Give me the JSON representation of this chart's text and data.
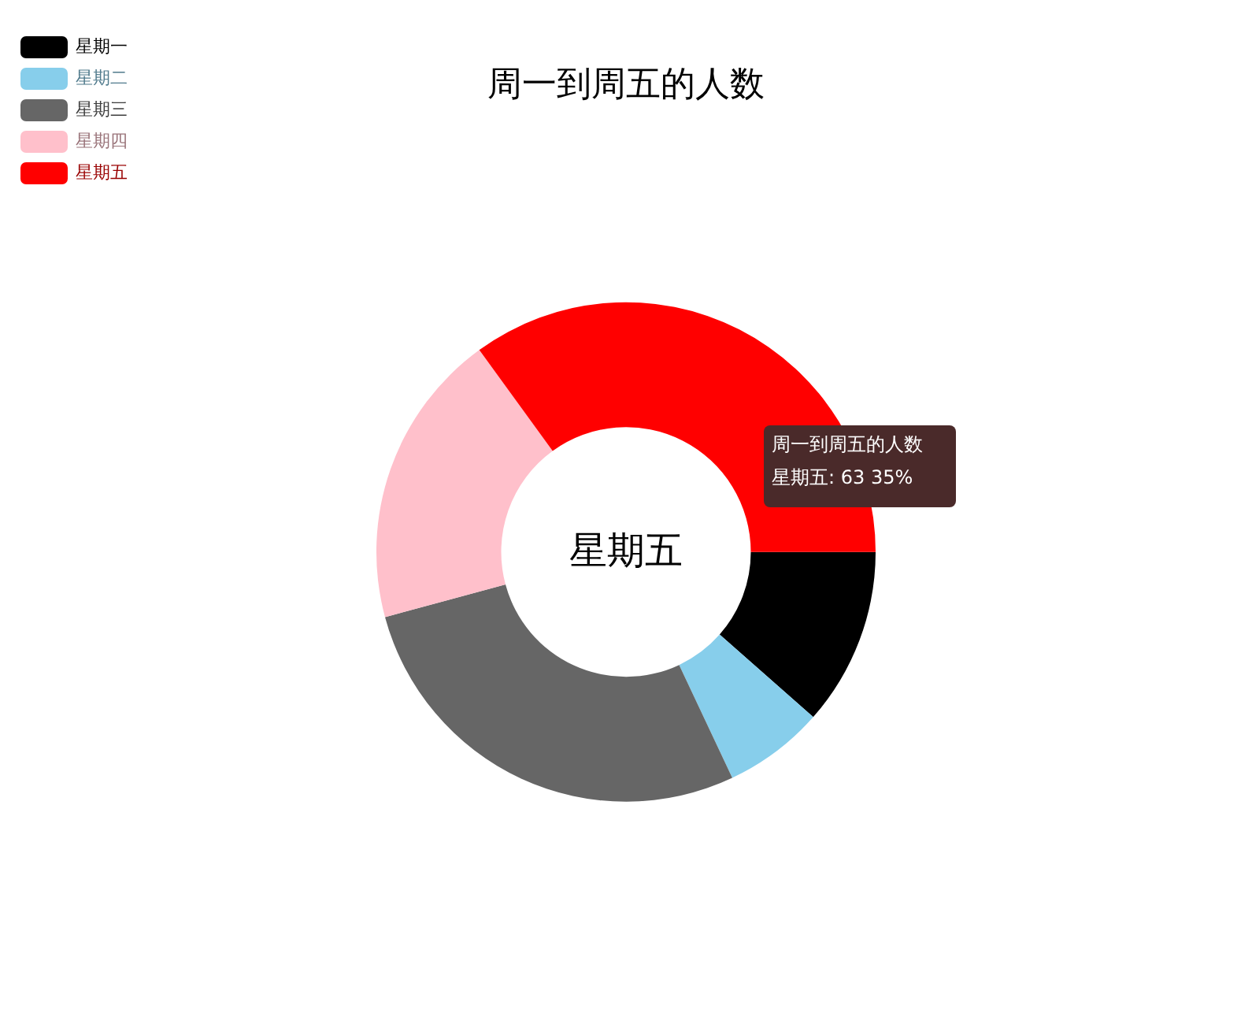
{
  "chart_data": {
    "type": "donut",
    "title": "周一到周五的人数",
    "categories": [
      "星期一",
      "星期二",
      "星期三",
      "星期四",
      "星期五"
    ],
    "values": [
      11.5,
      6.5,
      27.8,
      19.2,
      35
    ],
    "colors": [
      "#000000",
      "#87ceeb",
      "#666666",
      "#ffc0cb",
      "#ff0000"
    ],
    "legend": "top left",
    "annotations": [
      "星期五",
      "周一到周五的人数",
      "星期五: 63 35%"
    ]
  }
}
